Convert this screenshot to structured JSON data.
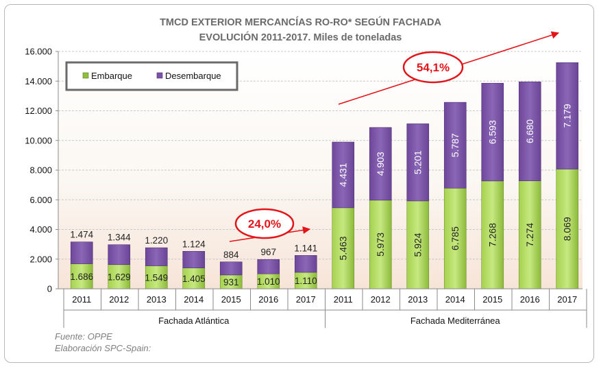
{
  "chart_data": {
    "type": "stacked-bar",
    "title_line1": "TMCD EXTERIOR MERCANCÍAS RO-RO* SEGÚN FACHADA",
    "title_line2": "EVOLUCIÓN 2011-2017. Miles de toneladas",
    "ylim": [
      0,
      16000
    ],
    "yticks": [
      {
        "v": 0,
        "label": "0"
      },
      {
        "v": 2000,
        "label": "2.000"
      },
      {
        "v": 4000,
        "label": "4.000"
      },
      {
        "v": 6000,
        "label": "6.000"
      },
      {
        "v": 8000,
        "label": "8.000"
      },
      {
        "v": 10000,
        "label": "10.000"
      },
      {
        "v": 12000,
        "label": "12.000"
      },
      {
        "v": 14000,
        "label": "14.000"
      },
      {
        "v": 16000,
        "label": "16.000"
      }
    ],
    "legend": {
      "position": "top-left",
      "embarque": "Embarque",
      "desembarque": "Desembarque"
    },
    "groups": [
      {
        "name": "Fachada Atlántica",
        "categories": [
          "2011",
          "2012",
          "2013",
          "2014",
          "2015",
          "2016",
          "2017"
        ],
        "embarque": [
          1686,
          1629,
          1549,
          1405,
          931,
          1010,
          1110
        ],
        "embarque_labels": [
          "1.686",
          "1.629",
          "1.549",
          "1.405",
          "931",
          "1.010",
          "1.110"
        ],
        "desembarque": [
          1474,
          1344,
          1220,
          1124,
          884,
          967,
          1141
        ],
        "desembarque_labels": [
          "1.474",
          "1.344",
          "1.220",
          "1.124",
          "884",
          "967",
          "1.141"
        ]
      },
      {
        "name": "Fachada Mediterránea",
        "categories": [
          "2011",
          "2012",
          "2013",
          "2014",
          "2015",
          "2016",
          "2017"
        ],
        "embarque": [
          5463,
          5973,
          5924,
          6785,
          7268,
          7274,
          8069
        ],
        "embarque_labels": [
          "5.463",
          "5.973",
          "5.924",
          "6.785",
          "7.268",
          "7.274",
          "8.069"
        ],
        "desembarque": [
          4431,
          4903,
          5201,
          5787,
          6593,
          6680,
          7179
        ],
        "desembarque_labels": [
          "4.431",
          "4.903",
          "5.201",
          "5.787",
          "6.593",
          "6.680",
          "7.179"
        ]
      }
    ],
    "annotations": [
      {
        "text": "24,0%",
        "group": 0
      },
      {
        "text": "54,1%",
        "group": 1
      }
    ],
    "colors": {
      "embarque": "#8fbd3e",
      "embarque_light": "#c7e87a",
      "desembarque": "#7a53a6",
      "desembarque_light": "#a486c8",
      "accent": "#e3151a",
      "axis": "#8a8a8a"
    }
  },
  "source": {
    "line1": "Fuente: OPPE",
    "line2": "Elaboración SPC-Spain:"
  }
}
